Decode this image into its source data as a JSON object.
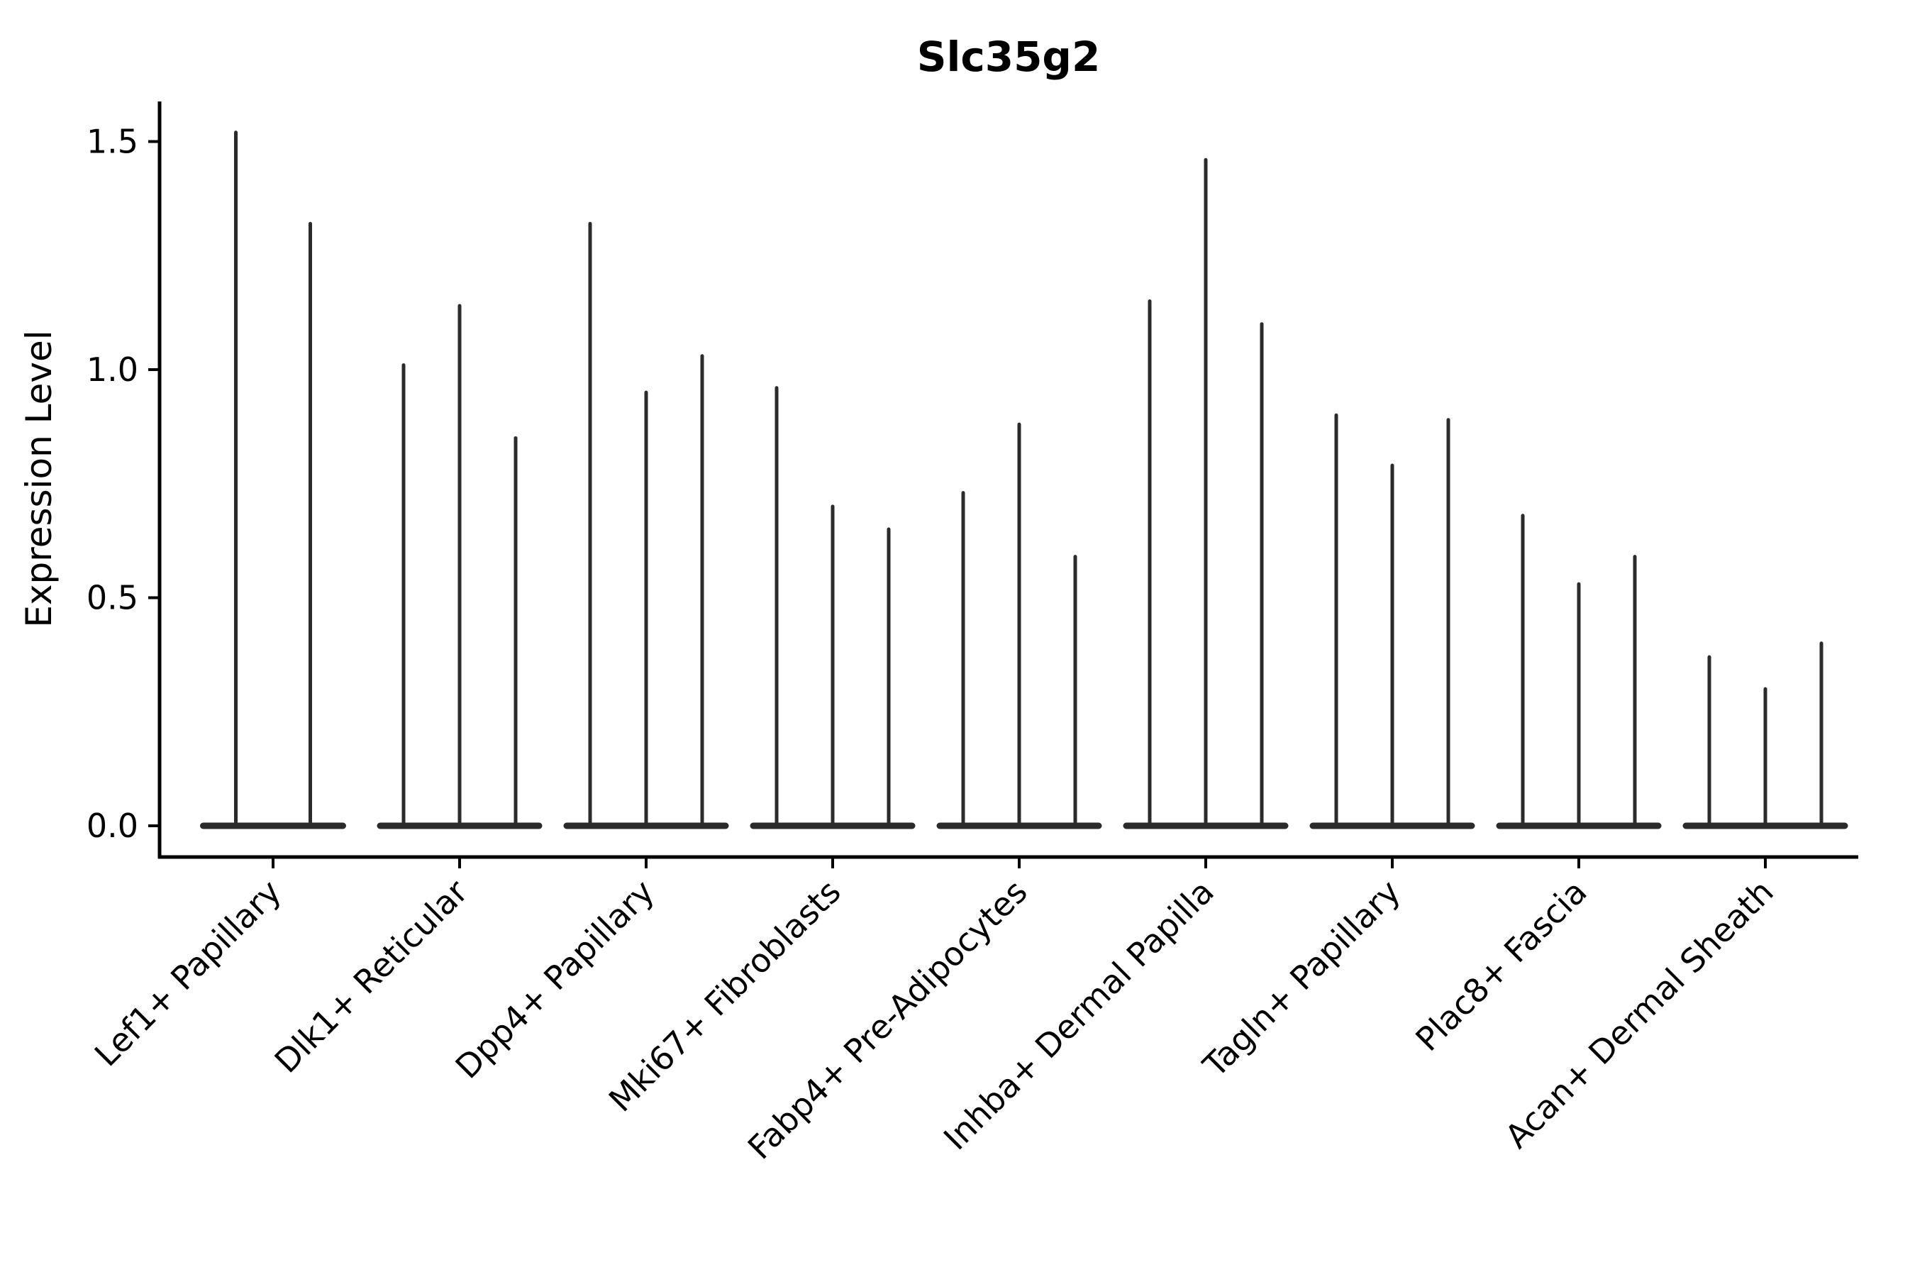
{
  "chart_data": {
    "type": "violin",
    "title": "Slc35g2",
    "ylabel": "Expression Level",
    "xlabel": "",
    "y_ticks": [
      "0.0",
      "0.5",
      "1.0",
      "1.5"
    ],
    "y_tick_values": [
      0.0,
      0.5,
      1.0,
      1.5
    ],
    "ylim": [
      -0.07,
      1.58
    ],
    "grid": false,
    "legend_position": "none",
    "x_tick_rotation_deg": 45,
    "description": "Needle-thin violins: wide flat body at expression 0 with a thin spike rising to the maximum expression value; 2 violins in the first category, 3 in all others.",
    "categories": [
      "Lef1+ Papillary",
      "Dlk1+ Reticular",
      "Dpp4+ Papillary",
      "Mki67+ Fibroblasts",
      "Fabp4+ Pre-Adipocytes",
      "Inhba+ Dermal Papilla",
      "Tagln+ Papillary",
      "Plac8+ Fascia",
      "Acan+ Dermal Sheath"
    ],
    "groups": [
      {
        "category": "Lef1+ Papillary",
        "spike_heights": [
          1.52,
          1.32
        ]
      },
      {
        "category": "Dlk1+ Reticular",
        "spike_heights": [
          1.01,
          1.14,
          0.85
        ]
      },
      {
        "category": "Dpp4+ Papillary",
        "spike_heights": [
          1.32,
          0.95,
          1.03
        ]
      },
      {
        "category": "Mki67+ Fibroblasts",
        "spike_heights": [
          0.96,
          0.7,
          0.65
        ]
      },
      {
        "category": "Fabp4+ Pre-Adipocytes",
        "spike_heights": [
          0.73,
          0.88,
          0.59
        ]
      },
      {
        "category": "Inhba+ Dermal Papilla",
        "spike_heights": [
          1.15,
          1.46,
          1.1
        ]
      },
      {
        "category": "Tagln+ Papillary",
        "spike_heights": [
          0.9,
          0.79,
          0.89
        ]
      },
      {
        "category": "Plac8+ Fascia",
        "spike_heights": [
          0.68,
          0.53,
          0.59
        ]
      },
      {
        "category": "Acan+ Dermal Sheath",
        "spike_heights": [
          0.37,
          0.3,
          0.4
        ]
      }
    ],
    "colors": {
      "violin": "#2b2b2b",
      "axis": "#000000",
      "text": "#000000",
      "background": "#ffffff"
    }
  }
}
